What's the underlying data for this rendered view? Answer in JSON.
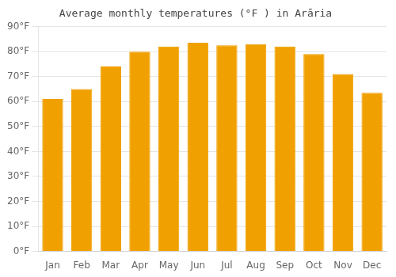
{
  "chart_data": {
    "type": "bar",
    "title": "Average monthly temperatures (°F ) in Arāria",
    "categories": [
      "Jan",
      "Feb",
      "Mar",
      "Apr",
      "May",
      "Jun",
      "Jul",
      "Aug",
      "Sep",
      "Oct",
      "Nov",
      "Dec"
    ],
    "values": [
      61,
      65,
      74,
      80,
      82,
      83.5,
      82.5,
      83,
      82,
      79,
      71,
      63.5
    ],
    "color": "#F0A000",
    "ylim": [
      0,
      90
    ],
    "yticks": [
      {
        "value": 0,
        "label": "0°F"
      },
      {
        "value": 10,
        "label": "10°F"
      },
      {
        "value": 20,
        "label": "20°F"
      },
      {
        "value": 30,
        "label": "30°F"
      },
      {
        "value": 40,
        "label": "40°F"
      },
      {
        "value": 50,
        "label": "50°F"
      },
      {
        "value": 60,
        "label": "60°F"
      },
      {
        "value": 70,
        "label": "70°F"
      },
      {
        "value": 80,
        "label": "80°F"
      },
      {
        "value": 90,
        "label": "90°F"
      }
    ],
    "grid": true
  }
}
